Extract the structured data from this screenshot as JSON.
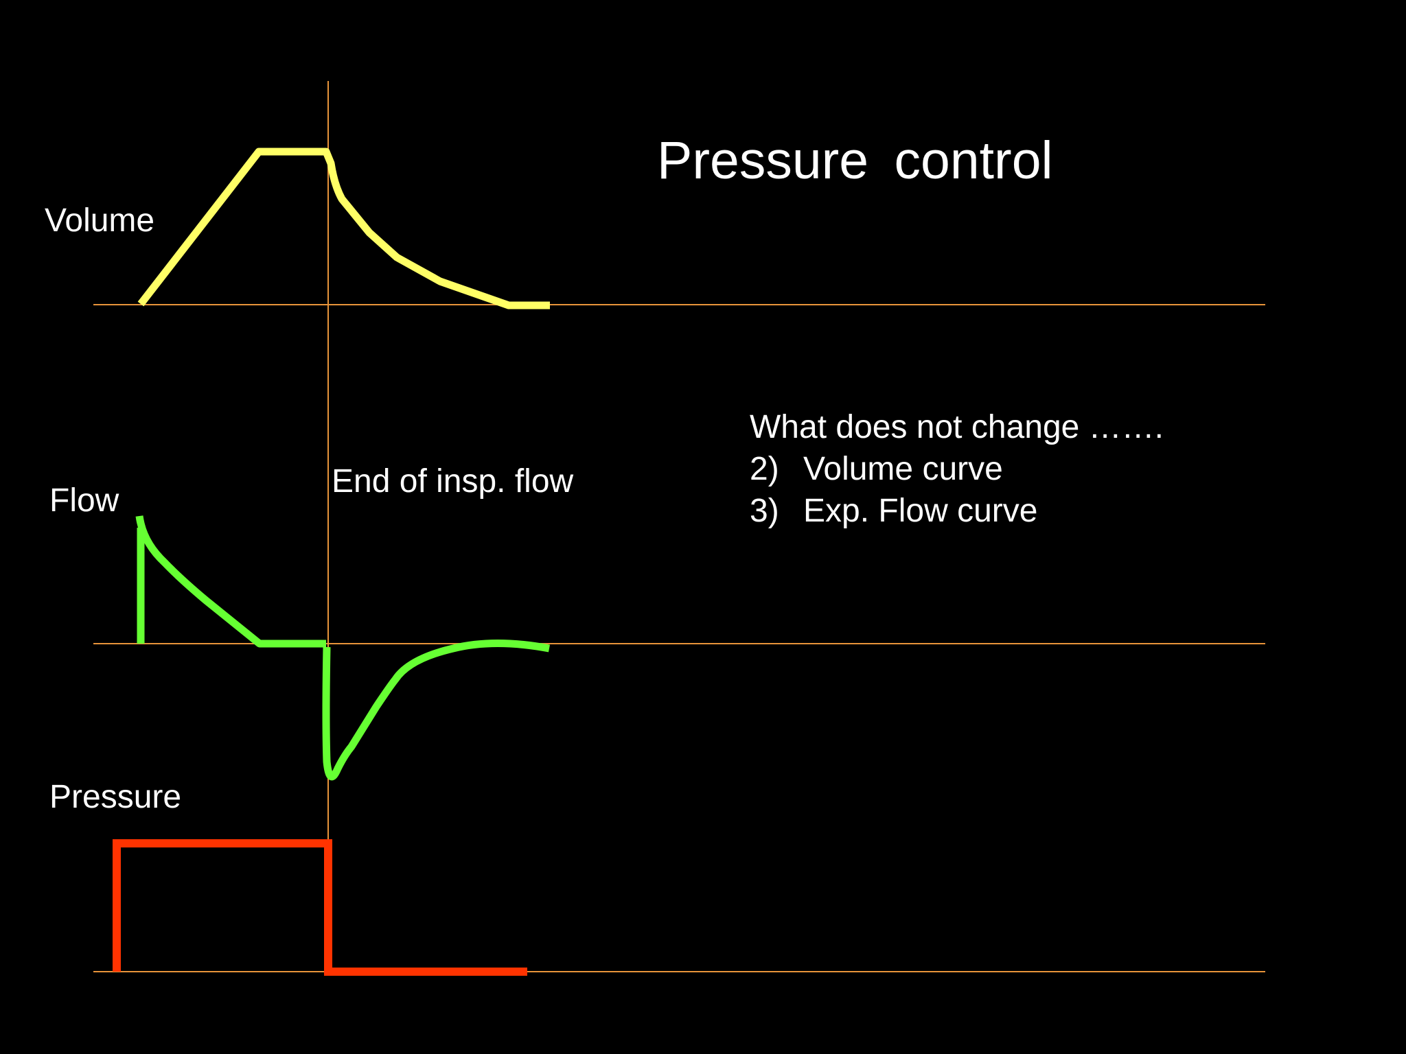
{
  "title": "Pressure  control",
  "labels": {
    "volume": "Volume",
    "flow": "Flow",
    "pressure": "Pressure",
    "end_marker": "End of insp. flow"
  },
  "notes": {
    "heading": "What does not change …….",
    "items": [
      {
        "num": "2)",
        "text": "Volume curve"
      },
      {
        "num": "3)",
        "text": "Exp. Flow curve"
      }
    ]
  },
  "colors": {
    "background": "#000000",
    "text": "#ffffff",
    "axis": "#e8943a",
    "volume": "#ffff66",
    "flow": "#66ff33",
    "pressure": "#ff3300"
  }
}
